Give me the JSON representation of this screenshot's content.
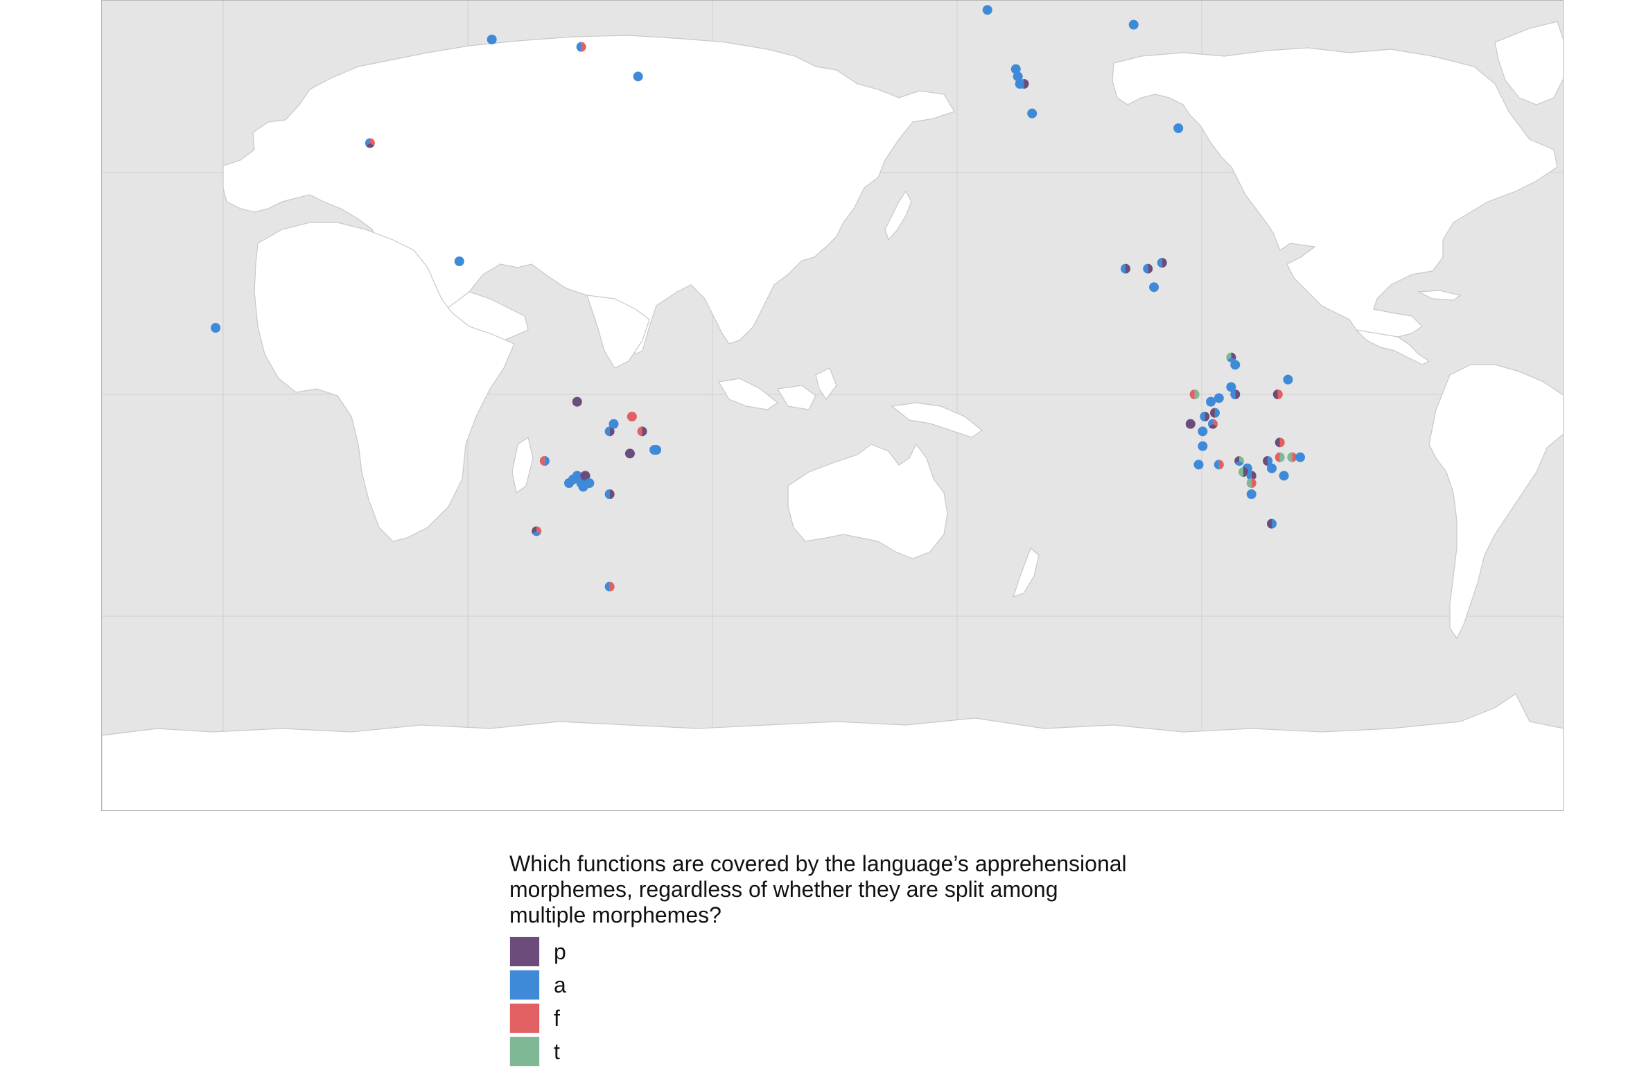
{
  "legend": {
    "title": "Which functions are covered by the language’s apprehensional\nmorphemes, regardless of whether they are split among\nmultiple morphemes?",
    "items": [
      {
        "label": "p",
        "color": "#6b4c7a"
      },
      {
        "label": "a",
        "color": "#3e8ad9"
      },
      {
        "label": "f",
        "color": "#e06064"
      },
      {
        "label": "t",
        "color": "#7fb894"
      }
    ]
  },
  "map": {
    "background_color": "#e5e5e5",
    "land_color": "#ffffff",
    "projection": "pacific-centered",
    "points": [
      {
        "lon": 39.0,
        "lat": 9.0,
        "cats": [
          "a"
        ]
      },
      {
        "lon": 77.0,
        "lat": 34.0,
        "cats": [
          "f",
          "p",
          "a"
        ]
      },
      {
        "lon": 99.0,
        "lat": 18.0,
        "cats": [
          "a"
        ]
      },
      {
        "lon": 107.0,
        "lat": 48.0,
        "cats": [
          "a"
        ]
      },
      {
        "lon": 129.0,
        "lat": 47.0,
        "cats": [
          "f",
          "a"
        ]
      },
      {
        "lon": 143.0,
        "lat": 43.0,
        "cats": [
          "a"
        ]
      },
      {
        "lon": 120.0,
        "lat": -9.0,
        "cats": [
          "a",
          "f"
        ]
      },
      {
        "lon": 128.0,
        "lat": -1.0,
        "cats": [
          "p"
        ]
      },
      {
        "lon": 136.0,
        "lat": -5.0,
        "cats": [
          "p",
          "a"
        ]
      },
      {
        "lon": 137.0,
        "lat": -4.0,
        "cats": [
          "a"
        ]
      },
      {
        "lon": 141.5,
        "lat": -3.0,
        "cats": [
          "f"
        ]
      },
      {
        "lon": 144.0,
        "lat": -5.0,
        "cats": [
          "p",
          "f"
        ]
      },
      {
        "lon": 141.0,
        "lat": -8.0,
        "cats": [
          "p"
        ]
      },
      {
        "lon": 147.0,
        "lat": -7.5,
        "cats": [
          "a"
        ]
      },
      {
        "lon": 147.5,
        "lat": -7.5,
        "cats": [
          "a"
        ]
      },
      {
        "lon": 126.0,
        "lat": -12.0,
        "cats": [
          "a"
        ]
      },
      {
        "lon": 127.0,
        "lat": -11.5,
        "cats": [
          "a"
        ]
      },
      {
        "lon": 128.0,
        "lat": -11.0,
        "cats": [
          "a"
        ]
      },
      {
        "lon": 129.0,
        "lat": -12.0,
        "cats": [
          "a"
        ]
      },
      {
        "lon": 130.0,
        "lat": -11.0,
        "cats": [
          "p"
        ]
      },
      {
        "lon": 131.0,
        "lat": -12.0,
        "cats": [
          "a"
        ]
      },
      {
        "lon": 129.5,
        "lat": -12.5,
        "cats": [
          "a"
        ]
      },
      {
        "lon": 136.0,
        "lat": -13.5,
        "cats": [
          "p",
          "a"
        ]
      },
      {
        "lon": 118.0,
        "lat": -18.5,
        "cats": [
          "f",
          "a",
          "p"
        ]
      },
      {
        "lon": 136.0,
        "lat": -26.0,
        "cats": [
          "f",
          "a"
        ]
      },
      {
        "lon": -163.0,
        "lat": 62.0,
        "cats": [
          "p"
        ]
      },
      {
        "lon": -147.0,
        "lat": 61.0,
        "cats": [
          "a"
        ]
      },
      {
        "lon": -135.0,
        "lat": 65.0,
        "cats": [
          "p"
        ]
      },
      {
        "lon": -132.0,
        "lat": 54.0,
        "cats": [
          "f",
          "p"
        ]
      },
      {
        "lon": -131.0,
        "lat": 52.0,
        "cats": [
          "a"
        ]
      },
      {
        "lon": -124.0,
        "lat": 44.0,
        "cats": [
          "a"
        ]
      },
      {
        "lon": -123.5,
        "lat": 43.0,
        "cats": [
          "a"
        ]
      },
      {
        "lon": -123.0,
        "lat": 42.0,
        "cats": [
          "a"
        ]
      },
      {
        "lon": -122.0,
        "lat": 42.0,
        "cats": [
          "p",
          "a"
        ]
      },
      {
        "lon": -120.0,
        "lat": 38.0,
        "cats": [
          "a"
        ]
      },
      {
        "lon": -95.0,
        "lat": 50.0,
        "cats": [
          "a"
        ]
      },
      {
        "lon": -84.0,
        "lat": 36.0,
        "cats": [
          "a"
        ]
      },
      {
        "lon": -23.0,
        "lat": 72.0,
        "cats": [
          "a",
          "p",
          "f"
        ]
      },
      {
        "lon": -97.0,
        "lat": 17.0,
        "cats": [
          "p",
          "a"
        ]
      },
      {
        "lon": -91.5,
        "lat": 17.0,
        "cats": [
          "p",
          "a"
        ]
      },
      {
        "lon": -88.0,
        "lat": 17.8,
        "cats": [
          "p",
          "a"
        ]
      },
      {
        "lon": -90.0,
        "lat": 14.5,
        "cats": [
          "a"
        ]
      },
      {
        "lon": -71.0,
        "lat": 5.0,
        "cats": [
          "p",
          "a",
          "t"
        ]
      },
      {
        "lon": -70.0,
        "lat": 4.0,
        "cats": [
          "a"
        ]
      },
      {
        "lon": -71.0,
        "lat": 1.0,
        "cats": [
          "a"
        ]
      },
      {
        "lon": -70.0,
        "lat": 0.0,
        "cats": [
          "p",
          "a"
        ]
      },
      {
        "lon": -74.0,
        "lat": -0.5,
        "cats": [
          "a"
        ]
      },
      {
        "lon": -76.0,
        "lat": -1.0,
        "cats": [
          "a"
        ]
      },
      {
        "lon": -80.0,
        "lat": 0.0,
        "cats": [
          "t",
          "f"
        ]
      },
      {
        "lon": -77.5,
        "lat": -3.0,
        "cats": [
          "p",
          "a"
        ]
      },
      {
        "lon": -75.0,
        "lat": -2.5,
        "cats": [
          "a",
          "p"
        ]
      },
      {
        "lon": -81.0,
        "lat": -4.0,
        "cats": [
          "p"
        ]
      },
      {
        "lon": -78.0,
        "lat": -5.0,
        "cats": [
          "a"
        ]
      },
      {
        "lon": -75.5,
        "lat": -4.0,
        "cats": [
          "f",
          "p",
          "a"
        ]
      },
      {
        "lon": -78.0,
        "lat": -7.0,
        "cats": [
          "a"
        ]
      },
      {
        "lon": -79.0,
        "lat": -9.5,
        "cats": [
          "a"
        ]
      },
      {
        "lon": -74.0,
        "lat": -9.5,
        "cats": [
          "f",
          "a"
        ]
      },
      {
        "lon": -69.0,
        "lat": -9.0,
        "cats": [
          "t",
          "a",
          "p"
        ]
      },
      {
        "lon": -67.0,
        "lat": -10.0,
        "cats": [
          "a"
        ]
      },
      {
        "lon": -68.0,
        "lat": -10.5,
        "cats": [
          "p",
          "t"
        ]
      },
      {
        "lon": -66.0,
        "lat": -11.0,
        "cats": [
          "p",
          "a"
        ]
      },
      {
        "lon": -66.0,
        "lat": -12.0,
        "cats": [
          "f",
          "t"
        ]
      },
      {
        "lon": -66.0,
        "lat": -13.5,
        "cats": [
          "a"
        ]
      },
      {
        "lon": -62.0,
        "lat": -9.0,
        "cats": [
          "a",
          "p"
        ]
      },
      {
        "lon": -61.0,
        "lat": -10.0,
        "cats": [
          "a"
        ]
      },
      {
        "lon": -59.0,
        "lat": -8.5,
        "cats": [
          "t",
          "f"
        ]
      },
      {
        "lon": -59.0,
        "lat": -6.5,
        "cats": [
          "f",
          "p"
        ]
      },
      {
        "lon": -58.0,
        "lat": -11.0,
        "cats": [
          "a"
        ]
      },
      {
        "lon": -56.0,
        "lat": -8.5,
        "cats": [
          "f",
          "t"
        ]
      },
      {
        "lon": -54.0,
        "lat": -8.5,
        "cats": [
          "a"
        ]
      },
      {
        "lon": -57.0,
        "lat": 2.0,
        "cats": [
          "a"
        ]
      },
      {
        "lon": -59.5,
        "lat": 0.0,
        "cats": [
          "f",
          "p"
        ]
      },
      {
        "lon": -61.0,
        "lat": -17.5,
        "cats": [
          "a",
          "p"
        ]
      }
    ]
  }
}
